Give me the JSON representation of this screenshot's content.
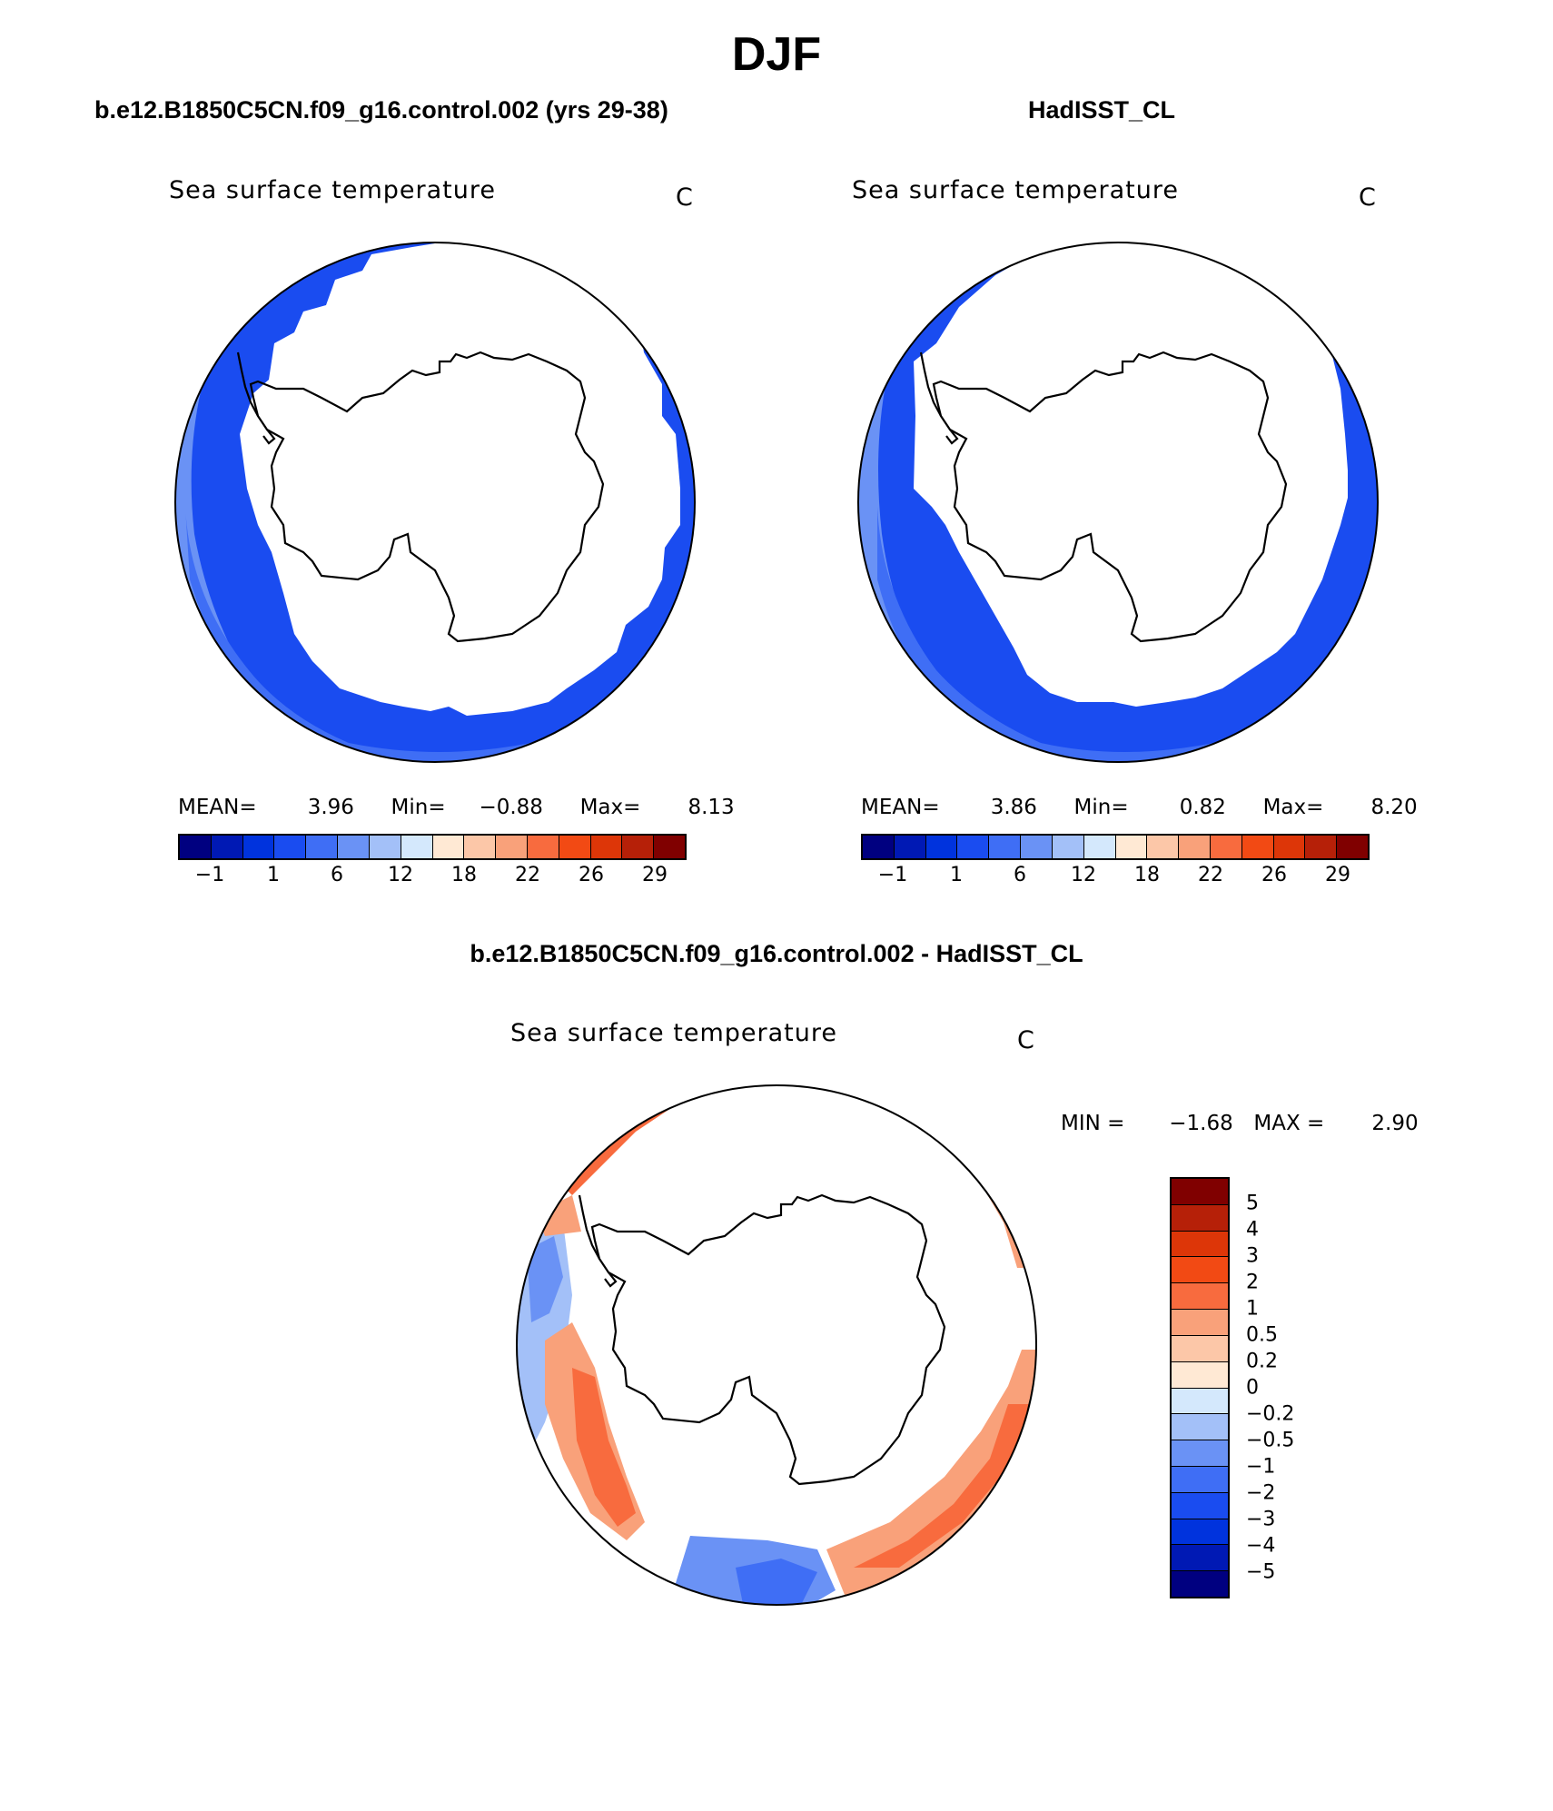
{
  "figure": {
    "title": "DJF",
    "case_title": "b.e12.B1850C5CN.f09_g16.control.002 (yrs 29-38)",
    "obs_title": "HadISST_CL",
    "diff_title": "b.e12.B1850C5CN.f09_g16.control.002 - HadISST_CL"
  },
  "panels": {
    "case": {
      "variable": "Sea surface temperature",
      "units": "C",
      "mean_label": "MEAN=",
      "mean": "3.96",
      "min_label": "Min=",
      "min": "−0.88",
      "max_label": "Max=",
      "max": "8.13"
    },
    "obs": {
      "variable": "Sea surface temperature",
      "units": "C",
      "mean_label": "MEAN=",
      "mean": "3.86",
      "min_label": "Min=",
      "min": "0.82",
      "max_label": "Max=",
      "max": "8.20"
    },
    "diff": {
      "variable": "Sea surface temperature",
      "units": "C",
      "min_label": "MIN =",
      "min": "−1.68",
      "max_label": "MAX =",
      "max": "2.90"
    }
  },
  "colorbars": {
    "abs_colors": [
      "#000080",
      "#0019b4",
      "#0033dd",
      "#1a4cf0",
      "#3f6ef5",
      "#6a92f5",
      "#a3c0f8",
      "#d4e8fc",
      "#ffe9d4",
      "#fcc7a8",
      "#f9a17a",
      "#f86b3e",
      "#f24a14",
      "#dd3608",
      "#b62008",
      "#800000"
    ],
    "abs_ticks": [
      "−1",
      "1",
      "6",
      "12",
      "18",
      "22",
      "26",
      "29"
    ],
    "diff_colors_top_to_bottom": [
      "#800000",
      "#b62008",
      "#dd3608",
      "#f24a14",
      "#f86b3e",
      "#f9a17a",
      "#fcc7a8",
      "#ffe9d4",
      "#d4e8fc",
      "#a3c0f8",
      "#6a92f5",
      "#3f6ef5",
      "#1a4cf0",
      "#0033dd",
      "#0019b4",
      "#000080"
    ],
    "diff_labels": [
      "5",
      "4",
      "3",
      "2",
      "1",
      "0.5",
      "0.2",
      "0",
      "−0.2",
      "−0.5",
      "−1",
      "−2",
      "−3",
      "−4",
      "−5"
    ]
  },
  "map_colors": {
    "ice": "#ffffff",
    "land": "#ffffff",
    "sst_cold": "#1a4cf0",
    "sst_mid": "#3f6ef5",
    "sst_warm": "#6a92f5",
    "diff_pos_strong": "#f86b3e",
    "diff_pos": "#f9a17a",
    "diff_pos_weak": "#fcc7a8",
    "diff_neg": "#6a92f5",
    "diff_neg_weak": "#a3c0f8",
    "diff_neg_strong": "#3f6ef5"
  },
  "chart_data": [
    {
      "type": "heatmap",
      "title": "Sea surface temperature",
      "projection": "south polar stereographic",
      "units": "C",
      "stats": {
        "mean": 3.96,
        "min": -0.88,
        "max": 8.13
      }
    },
    {
      "type": "heatmap",
      "title": "Sea surface temperature",
      "projection": "south polar stereographic",
      "units": "C",
      "stats": {
        "mean": 3.86,
        "min": 0.82,
        "max": 8.2
      }
    },
    {
      "type": "heatmap",
      "title": "Sea surface temperature",
      "projection": "south polar stereographic",
      "units": "C",
      "stats": {
        "min": -1.68,
        "max": 2.9
      }
    }
  ]
}
